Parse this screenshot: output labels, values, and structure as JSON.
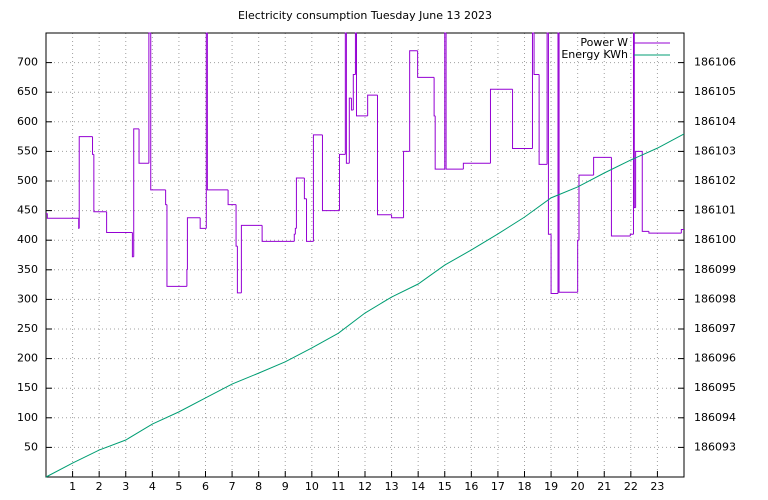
{
  "chart_data": {
    "type": "step-line",
    "title": "Electricity consumption Tuesday June 13 2023",
    "xlim": [
      0,
      24
    ],
    "xticks": [
      1,
      2,
      3,
      4,
      5,
      6,
      7,
      8,
      9,
      10,
      11,
      12,
      13,
      14,
      15,
      16,
      17,
      18,
      19,
      20,
      21,
      22,
      23
    ],
    "ylim": [
      0,
      750
    ],
    "yticks": [
      50,
      100,
      150,
      200,
      250,
      300,
      350,
      400,
      450,
      500,
      550,
      600,
      650,
      700
    ],
    "y2lim": [
      186092,
      186107
    ],
    "y2ticks": [
      186093,
      186094,
      186095,
      186096,
      186097,
      186098,
      186099,
      186100,
      186101,
      186102,
      186103,
      186104,
      186105,
      186106
    ],
    "grid": true,
    "legend": "top-right",
    "series": [
      {
        "name": "Power W",
        "color": "#9400d3",
        "steps": true,
        "x": [
          0,
          0.05,
          1.23,
          1.25,
          1.75,
          1.8,
          2.28,
          3.25,
          3.3,
          3.5,
          3.87,
          3.94,
          4.5,
          4.55,
          5.3,
          5.32,
          5.8,
          6.03,
          6.07,
          6.85,
          7.15,
          7.2,
          7.35,
          8.13,
          9.34,
          9.38,
          9.42,
          9.72,
          9.8,
          10.06,
          10.4,
          11.04,
          11.26,
          11.3,
          11.41,
          11.49,
          11.56,
          11.64,
          11.68,
          12.1,
          12.47,
          13.0,
          13.45,
          13.68,
          13.98,
          14.6,
          14.64,
          15.0,
          15.05,
          15.7,
          16.72,
          17.55,
          18.3,
          18.36,
          18.55,
          18.85,
          18.9,
          19.0,
          19.26,
          19.3,
          20.0,
          20.05,
          20.6,
          21.27,
          21.98,
          22.1,
          22.13,
          22.18,
          22.43,
          22.68,
          23.9
        ],
        "values": [
          445,
          437,
          420,
          575,
          545,
          448,
          413,
          372,
          588,
          530,
          750,
          485,
          460,
          322,
          350,
          438,
          420,
          750,
          485,
          460,
          390,
          311,
          425,
          398,
          410,
          420,
          505,
          470,
          398,
          578,
          450,
          545,
          750,
          530,
          640,
          620,
          680,
          750,
          610,
          645,
          443,
          438,
          550,
          720,
          675,
          610,
          520,
          750,
          520,
          530,
          655,
          555,
          750,
          680,
          528,
          750,
          410,
          310,
          750,
          312,
          400,
          510,
          540,
          407,
          410,
          750,
          455,
          550,
          415,
          412,
          418
        ]
      },
      {
        "name": "Energy KWh",
        "color": "#009e73",
        "axis": "y2",
        "x": [
          0,
          1,
          2,
          3,
          4,
          5,
          6,
          7,
          8,
          9,
          10,
          11,
          12,
          13,
          14,
          15,
          16,
          17,
          18,
          19,
          20,
          21,
          22,
          23,
          24
        ],
        "values": [
          186092.0,
          186092.47,
          186092.91,
          186093.25,
          186093.79,
          186094.2,
          186094.67,
          186095.14,
          186095.51,
          186095.89,
          186096.36,
          186096.86,
          186097.54,
          186098.08,
          186098.52,
          186099.16,
          186099.67,
          186100.21,
          186100.78,
          186101.43,
          186101.8,
          186102.27,
          186102.71,
          186103.11,
          186103.59
        ]
      }
    ]
  }
}
